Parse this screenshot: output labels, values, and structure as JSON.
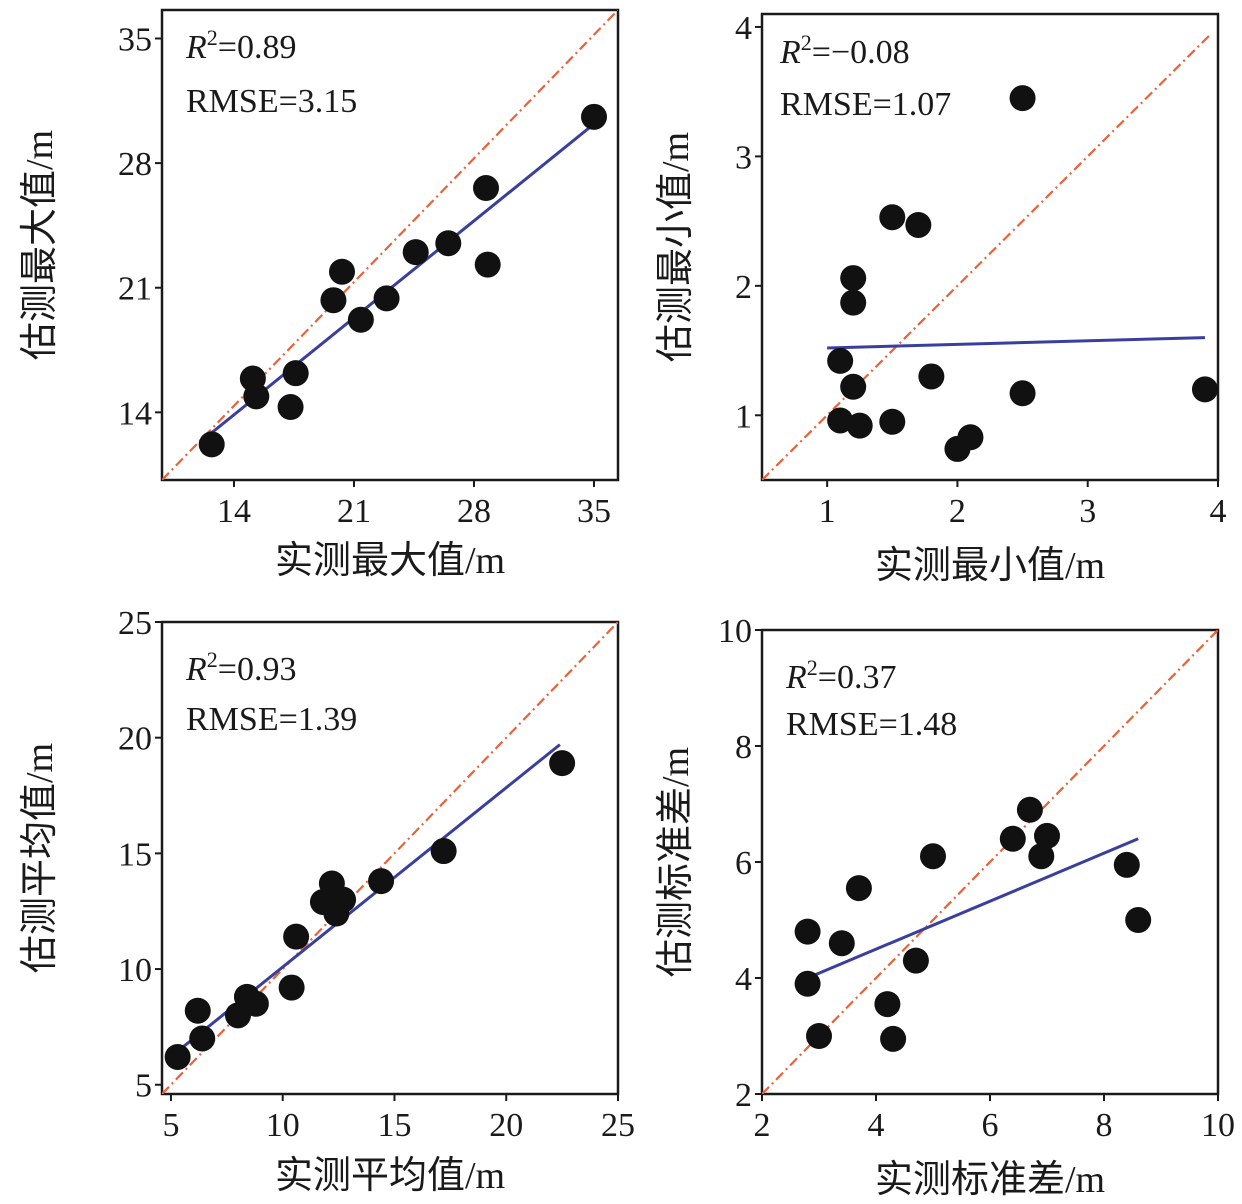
{
  "chart_data": [
    {
      "type": "scatter",
      "name_key": "max",
      "xlabel": "实测最大值/m",
      "ylabel": "估测最大值/m",
      "xlim": [
        9.8,
        36.4
      ],
      "ylim": [
        10.2,
        36.6
      ],
      "xticks": [
        "14",
        "21",
        "28",
        "35"
      ],
      "yticks": [
        "14",
        "21",
        "28",
        "35"
      ],
      "stats": {
        "r2_prefix": "R",
        "r2_sup": "2",
        "r2_value": "=0.89",
        "rmse": "RMSE=3.15"
      },
      "fit_line": [
        [
          12.5,
          12.7
        ],
        [
          35.0,
          30.2
        ]
      ],
      "identity_line": [
        [
          9.8,
          10.2
        ],
        [
          36.4,
          36.6
        ]
      ],
      "points": [
        [
          12.7,
          12.2
        ],
        [
          15.1,
          15.9
        ],
        [
          15.3,
          14.9
        ],
        [
          17.3,
          14.3
        ],
        [
          17.6,
          16.2
        ],
        [
          19.8,
          20.3
        ],
        [
          20.3,
          21.9
        ],
        [
          21.4,
          19.2
        ],
        [
          22.9,
          20.4
        ],
        [
          24.6,
          23.0
        ],
        [
          26.5,
          23.5
        ],
        [
          28.7,
          26.6
        ],
        [
          28.8,
          22.3
        ],
        [
          35.0,
          30.6
        ]
      ]
    },
    {
      "type": "scatter",
      "name_key": "min",
      "xlabel": "实测最小值/m",
      "ylabel": "估测最小值/m",
      "xlim": [
        0.5,
        4.0
      ],
      "ylim": [
        0.5,
        4.1
      ],
      "xticks": [
        "1",
        "2",
        "3",
        "4"
      ],
      "yticks": [
        "1",
        "2",
        "3",
        "4"
      ],
      "stats": {
        "r2_prefix": "R",
        "r2_sup": "2",
        "r2_value": "=−0.08",
        "rmse": "RMSE=1.07"
      },
      "fit_line": [
        [
          1.0,
          1.52
        ],
        [
          3.9,
          1.6
        ]
      ],
      "identity_line": [
        [
          0.5,
          0.5
        ],
        [
          3.95,
          3.95
        ]
      ],
      "points": [
        [
          1.1,
          1.42
        ],
        [
          1.1,
          0.96
        ],
        [
          1.2,
          2.06
        ],
        [
          1.2,
          1.87
        ],
        [
          1.2,
          1.22
        ],
        [
          1.25,
          0.92
        ],
        [
          1.5,
          2.53
        ],
        [
          1.5,
          0.95
        ],
        [
          1.7,
          2.47
        ],
        [
          1.8,
          1.3
        ],
        [
          2.0,
          0.74
        ],
        [
          2.1,
          0.83
        ],
        [
          2.5,
          3.45
        ],
        [
          2.5,
          1.17
        ],
        [
          3.9,
          1.2
        ]
      ]
    },
    {
      "type": "scatter",
      "name_key": "mean",
      "xlabel": "实测平均值/m",
      "ylabel": "估测平均值/m",
      "xlim": [
        4.6,
        25.0
      ],
      "ylim": [
        4.6,
        25.0
      ],
      "xticks": [
        "5",
        "10",
        "15",
        "20",
        "25"
      ],
      "yticks": [
        "5",
        "10",
        "15",
        "20",
        "25"
      ],
      "stats": {
        "r2_prefix": "R",
        "r2_sup": "2",
        "r2_value": "=0.93",
        "rmse": "RMSE=1.39"
      },
      "fit_line": [
        [
          5.5,
          6.6
        ],
        [
          22.4,
          19.7
        ]
      ],
      "identity_line": [
        [
          4.6,
          4.6
        ],
        [
          25.0,
          25.0
        ]
      ],
      "points": [
        [
          5.3,
          6.2
        ],
        [
          6.2,
          8.2
        ],
        [
          6.4,
          7.0
        ],
        [
          8.0,
          8.0
        ],
        [
          8.4,
          8.8
        ],
        [
          8.8,
          8.5
        ],
        [
          10.4,
          9.2
        ],
        [
          10.6,
          11.4
        ],
        [
          11.8,
          12.9
        ],
        [
          12.2,
          13.7
        ],
        [
          12.4,
          12.4
        ],
        [
          12.7,
          13.0
        ],
        [
          14.4,
          13.8
        ],
        [
          17.2,
          15.1
        ],
        [
          22.5,
          18.9
        ]
      ]
    },
    {
      "type": "scatter",
      "name_key": "std",
      "xlabel": "实测标准差/m",
      "ylabel": "估测标准差/m",
      "xlim": [
        2.0,
        10.0
      ],
      "ylim": [
        2.0,
        10.0
      ],
      "xticks": [
        "2",
        "4",
        "6",
        "8",
        "10"
      ],
      "yticks": [
        "2",
        "4",
        "6",
        "8",
        "10"
      ],
      "stats": {
        "r2_prefix": "R",
        "r2_sup": "2",
        "r2_value": "=0.37",
        "rmse": "RMSE=1.48"
      },
      "fit_line": [
        [
          2.8,
          4.0
        ],
        [
          8.6,
          6.4
        ]
      ],
      "identity_line": [
        [
          2.0,
          2.0
        ],
        [
          10.0,
          10.0
        ]
      ],
      "points": [
        [
          2.8,
          4.8
        ],
        [
          2.8,
          3.9
        ],
        [
          3.0,
          3.0
        ],
        [
          3.4,
          4.6
        ],
        [
          3.7,
          5.55
        ],
        [
          4.2,
          3.55
        ],
        [
          4.3,
          2.95
        ],
        [
          4.7,
          4.3
        ],
        [
          5.0,
          6.1
        ],
        [
          6.4,
          6.4
        ],
        [
          6.7,
          6.9
        ],
        [
          6.9,
          6.1
        ],
        [
          7.0,
          6.45
        ],
        [
          8.4,
          5.95
        ],
        [
          8.6,
          5.0
        ]
      ]
    }
  ]
}
